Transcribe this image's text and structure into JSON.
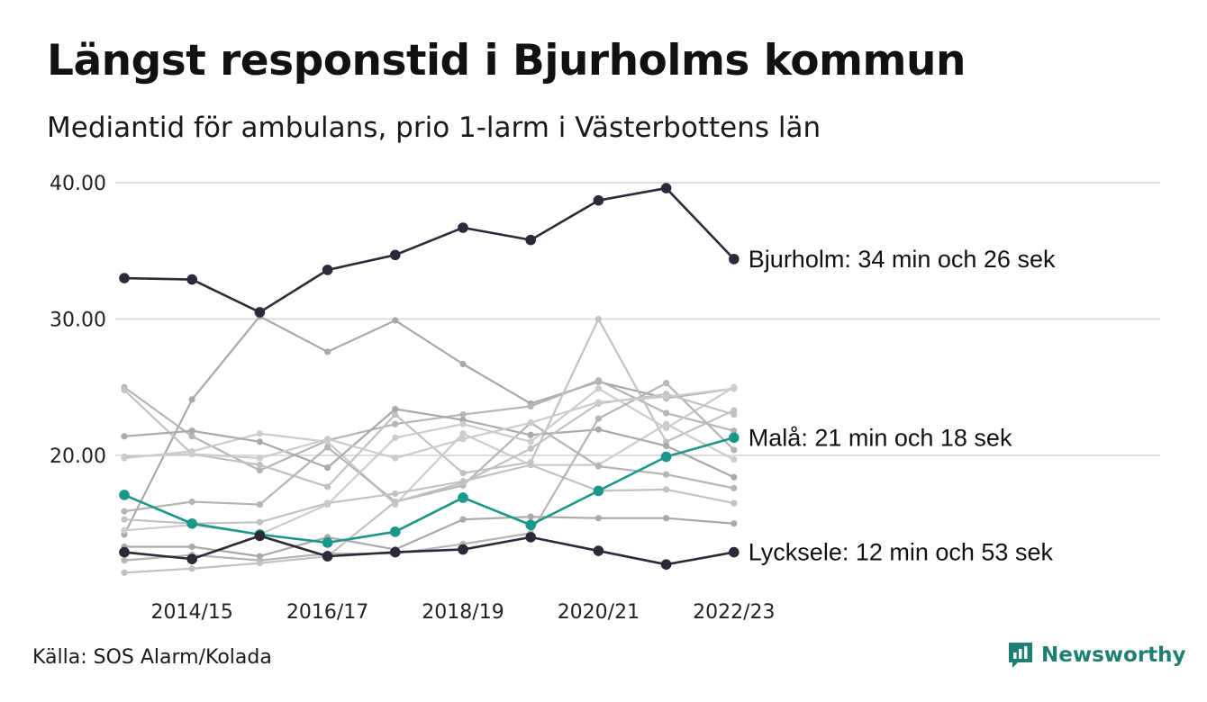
{
  "header": {
    "title": "Längst responstid i Bjurholms kommun",
    "subtitle": "Mediantid för ambulans, prio 1-larm i Västerbottens län"
  },
  "footer": {
    "source": "Källa: SOS Alarm/Kolada",
    "brand": "Newsworthy",
    "brand_icon": "newsworthy-logo-icon",
    "brand_color": "#1e7f72"
  },
  "colors": {
    "highlight_dark": "#2a2a38",
    "highlight_teal": "#1b968a",
    "background_lines": [
      "#a9a9a9",
      "#b5b5b5",
      "#c2c2c2",
      "#cccccc"
    ],
    "grid": "#dddddd"
  },
  "chart_data": {
    "type": "line",
    "x": [
      "2013/14",
      "2014/15",
      "2015/16",
      "2016/17",
      "2017/18",
      "2018/19",
      "2019/20",
      "2020/21",
      "2021/22",
      "2022/23"
    ],
    "x_tick_labels": [
      "2014/15",
      "2016/17",
      "2018/19",
      "2020/21",
      "2022/23"
    ],
    "y_tick_labels": [
      "40.00",
      "30.00",
      "20.00"
    ],
    "y_ticks": [
      20,
      30,
      40
    ],
    "ylim": [
      10.5,
      41
    ],
    "grid": true,
    "highlighted_series": [
      {
        "label": "Bjurholm: 34 min och 26 sek",
        "color": "#2a2a38",
        "values": [
          33.0,
          32.9,
          30.5,
          33.6,
          34.7,
          36.7,
          35.8,
          38.7,
          39.6,
          34.4
        ]
      },
      {
        "label": "Malå: 21 min och 18 sek",
        "color": "#1b968a",
        "values": [
          17.1,
          15.0,
          14.2,
          13.6,
          14.4,
          16.9,
          14.9,
          17.4,
          19.9,
          21.3
        ]
      },
      {
        "label": "Lycksele: 12 min och 53 sek",
        "color": "#2a2a38",
        "values": [
          12.9,
          12.4,
          14.1,
          12.6,
          12.9,
          13.1,
          14.0,
          13.0,
          12.0,
          12.9
        ]
      }
    ],
    "background_series": [
      {
        "values": [
          14.2,
          24.1,
          30.2,
          27.6,
          29.9,
          26.7,
          23.8,
          25.4,
          24.2,
          24.9
        ]
      },
      {
        "values": [
          25.0,
          21.4,
          18.9,
          21.1,
          22.3,
          23.0,
          23.6,
          25.5,
          23.1,
          21.8
        ]
      },
      {
        "values": [
          24.8,
          20.1,
          19.3,
          17.7,
          23.0,
          18.7,
          19.5,
          30.0,
          21.0,
          23.3
        ]
      },
      {
        "values": [
          19.8,
          20.3,
          21.6,
          21.0,
          16.4,
          21.6,
          19.3,
          19.3,
          22.3,
          19.7
        ]
      },
      {
        "values": [
          21.4,
          21.8,
          21.0,
          19.1,
          23.4,
          22.6,
          21.5,
          21.9,
          20.7,
          18.4
        ]
      },
      {
        "values": [
          15.9,
          16.6,
          16.4,
          20.6,
          16.6,
          17.8,
          22.4,
          19.2,
          18.6,
          17.6
        ]
      },
      {
        "values": [
          15.3,
          15.0,
          15.1,
          16.5,
          17.2,
          18.1,
          19.3,
          17.4,
          17.5,
          16.5
        ]
      },
      {
        "values": [
          14.5,
          14.9,
          14.2,
          16.4,
          21.3,
          22.3,
          21.0,
          24.9,
          22.0,
          25.0
        ]
      },
      {
        "values": [
          13.3,
          13.3,
          12.6,
          14.0,
          13.1,
          15.3,
          15.5,
          15.4,
          15.4,
          15.0
        ]
      },
      {
        "values": [
          12.3,
          12.7,
          12.3,
          12.8,
          12.8,
          13.5,
          14.3,
          22.7,
          25.3,
          20.4
        ]
      },
      {
        "values": [
          11.4,
          11.7,
          12.1,
          12.6,
          16.6,
          18.0,
          20.5,
          23.8,
          24.5,
          23.0
        ]
      },
      {
        "values": [
          19.9,
          20.1,
          19.8,
          21.2,
          19.8,
          21.2,
          22.4,
          23.9,
          24.3,
          24.9
        ]
      }
    ]
  }
}
